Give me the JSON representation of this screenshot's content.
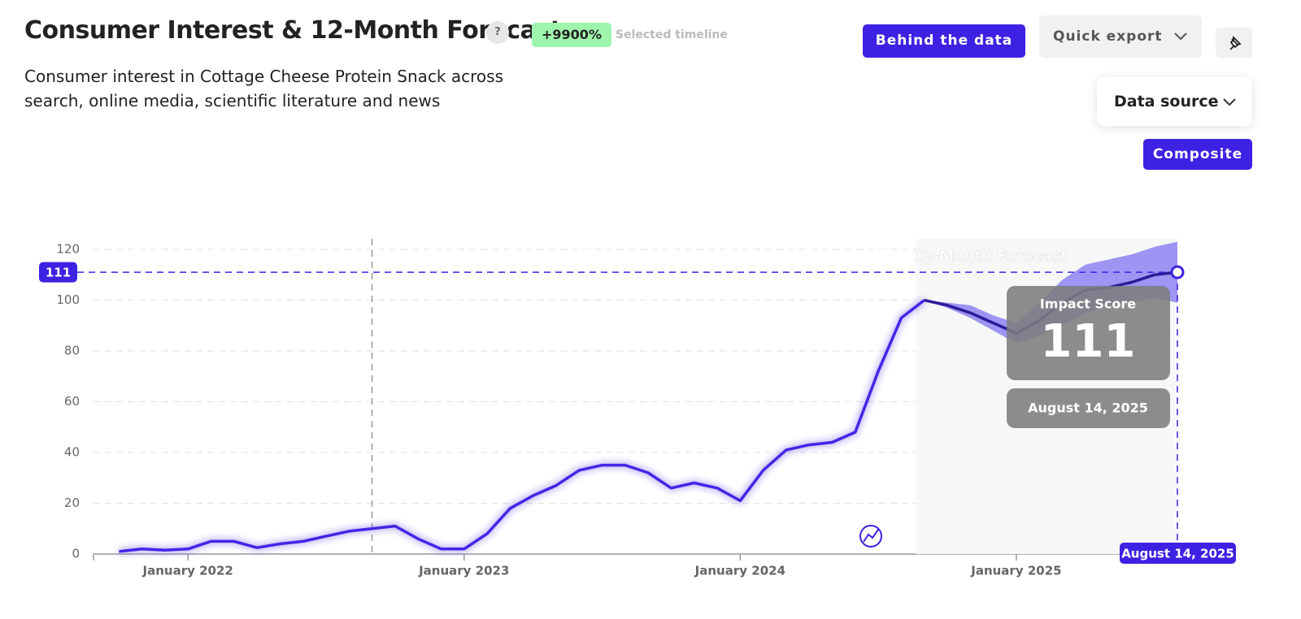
{
  "header": {
    "title": "Consumer Interest & 12-Month Forecast",
    "help": "?",
    "badge": "+9900%",
    "badge_note": "Selected timeline",
    "subtitle": "Consumer interest in Cottage Cheese Protein Snack across search, online media, scientific literature and news",
    "buttons": [
      "Behind the data",
      "Quick export",
      "Data source",
      "Composite"
    ]
  },
  "chart_data": {
    "type": "line",
    "annotation": "12-Month Forecast",
    "x": [
      "2021-10",
      "2021-11",
      "2021-12",
      "2022-01",
      "2022-02",
      "2022-03",
      "2022-04",
      "2022-05",
      "2022-06",
      "2022-07",
      "2022-08",
      "2022-09",
      "2022-10",
      "2022-11",
      "2022-12",
      "2023-01",
      "2023-02",
      "2023-03",
      "2023-04",
      "2023-05",
      "2023-06",
      "2023-07",
      "2023-08",
      "2023-09",
      "2023-10",
      "2023-11",
      "2023-12",
      "2024-01",
      "2024-02",
      "2024-03",
      "2024-04",
      "2024-05",
      "2024-06",
      "2024-07",
      "2024-08",
      "2024-09",
      "2024-10",
      "2024-11",
      "2024-12",
      "2025-01",
      "2025-02",
      "2025-03",
      "2025-04",
      "2025-05",
      "2025-06",
      "2025-07",
      "2025-08"
    ],
    "series": [
      {
        "color": "#4327e6",
        "values": [
          1,
          2,
          1.5,
          2,
          5,
          5,
          2.5,
          4,
          5,
          7,
          9,
          10,
          11,
          6,
          2,
          2,
          8,
          18,
          23,
          27,
          33,
          35,
          35,
          32,
          26,
          28,
          26,
          21,
          33,
          41,
          43,
          44,
          48,
          72,
          93,
          100,
          null,
          null,
          null,
          null,
          null,
          null,
          null,
          null,
          null,
          null,
          null
        ]
      },
      {
        "color": "#2e1b99",
        "values": [
          null,
          null,
          null,
          null,
          null,
          null,
          null,
          null,
          null,
          null,
          null,
          null,
          null,
          null,
          null,
          null,
          null,
          null,
          null,
          null,
          null,
          null,
          null,
          null,
          null,
          null,
          null,
          null,
          null,
          null,
          null,
          null,
          null,
          null,
          null,
          100,
          98,
          95,
          91,
          87,
          92,
          99,
          104,
          105,
          107,
          110,
          111
        ]
      }
    ],
    "band": {
      "color": "#7f73f2",
      "upper": [
        null,
        null,
        null,
        null,
        null,
        null,
        null,
        null,
        null,
        null,
        null,
        null,
        null,
        null,
        null,
        null,
        null,
        null,
        null,
        null,
        null,
        null,
        null,
        null,
        null,
        null,
        null,
        null,
        null,
        null,
        null,
        null,
        null,
        null,
        null,
        100,
        99,
        98,
        94,
        91,
        99,
        108,
        114,
        116,
        118,
        121,
        123
      ],
      "lower": [
        null,
        null,
        null,
        null,
        null,
        null,
        null,
        null,
        null,
        null,
        null,
        null,
        null,
        null,
        null,
        null,
        null,
        null,
        null,
        null,
        null,
        null,
        null,
        null,
        null,
        null,
        null,
        null,
        null,
        null,
        null,
        null,
        null,
        null,
        null,
        100,
        97,
        93,
        88,
        83,
        86,
        90,
        95,
        98,
        99,
        101,
        99
      ]
    },
    "highlight": {
      "label": "Impact Score",
      "value": 111,
      "date": "August 14, 2025"
    },
    "reference_x": "2022-09",
    "xlim": [
      "2021-09",
      "2025-08"
    ],
    "xticks": [
      {
        "value": "2022-01",
        "label": "January 2022"
      },
      {
        "value": "2023-01",
        "label": "January 2023"
      },
      {
        "value": "2024-01",
        "label": "January 2024"
      },
      {
        "value": "2025-01",
        "label": "January 2025"
      }
    ],
    "ylim": [
      0,
      120
    ],
    "yticks": [
      0,
      20,
      40,
      60,
      80,
      100,
      120
    ],
    "grid": true
  }
}
